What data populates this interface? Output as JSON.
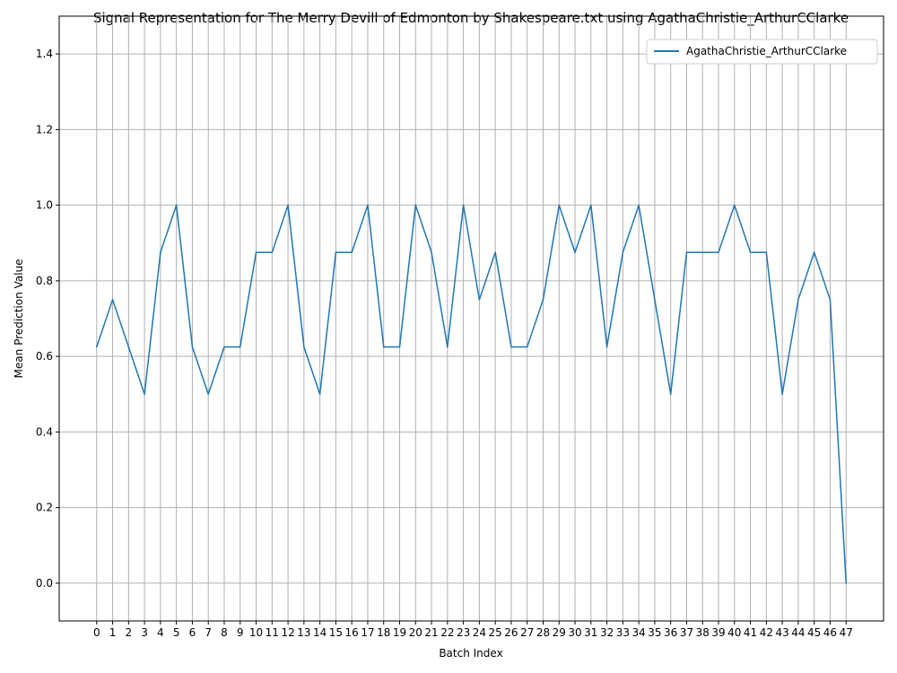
{
  "chart_data": {
    "type": "line",
    "title": "Signal Representation for The Merry Devill of Edmonton by Shakespeare.txt using AgathaChristie_ArthurCClarke",
    "xlabel": "Batch Index",
    "ylabel": "Mean Prediction Value",
    "xlim": [
      -2.35,
      49.35
    ],
    "ylim": [
      -0.1,
      1.5
    ],
    "xticks": [
      "0",
      "1",
      "2",
      "3",
      "4",
      "5",
      "6",
      "7",
      "8",
      "9",
      "10",
      "11",
      "12",
      "13",
      "14",
      "15",
      "16",
      "17",
      "18",
      "19",
      "20",
      "21",
      "22",
      "23",
      "24",
      "25",
      "26",
      "27",
      "28",
      "29",
      "30",
      "31",
      "32",
      "33",
      "34",
      "35",
      "36",
      "37",
      "38",
      "39",
      "40",
      "41",
      "42",
      "43",
      "44",
      "45",
      "46",
      "47"
    ],
    "yticks": [
      "0.0",
      "0.2",
      "0.4",
      "0.6",
      "0.8",
      "1.0",
      "1.2",
      "1.4"
    ],
    "grid": true,
    "legend_position": "top-right",
    "series": [
      {
        "name": "AgathaChristie_ArthurCClarke",
        "color": "#1f77b4",
        "x": [
          0,
          1,
          2,
          3,
          4,
          5,
          6,
          7,
          8,
          9,
          10,
          11,
          12,
          13,
          14,
          15,
          16,
          17,
          18,
          19,
          20,
          21,
          22,
          23,
          24,
          25,
          26,
          27,
          28,
          29,
          30,
          31,
          32,
          33,
          34,
          35,
          36,
          37,
          38,
          39,
          40,
          41,
          42,
          43,
          44,
          45,
          46,
          47
        ],
        "values": [
          0.625,
          0.75,
          0.625,
          0.5,
          0.875,
          1.0,
          0.625,
          0.5,
          0.625,
          0.625,
          0.875,
          0.875,
          1.0,
          0.625,
          0.5,
          0.875,
          0.875,
          1.0,
          0.625,
          0.625,
          1.0,
          0.875,
          0.625,
          1.0,
          0.75,
          0.875,
          0.625,
          0.625,
          0.75,
          1.0,
          0.875,
          1.0,
          0.625,
          0.875,
          1.0,
          0.75,
          0.5,
          0.875,
          0.875,
          0.875,
          1.0,
          0.875,
          0.875,
          0.5,
          0.75,
          0.875,
          0.75,
          0.0
        ]
      }
    ]
  }
}
